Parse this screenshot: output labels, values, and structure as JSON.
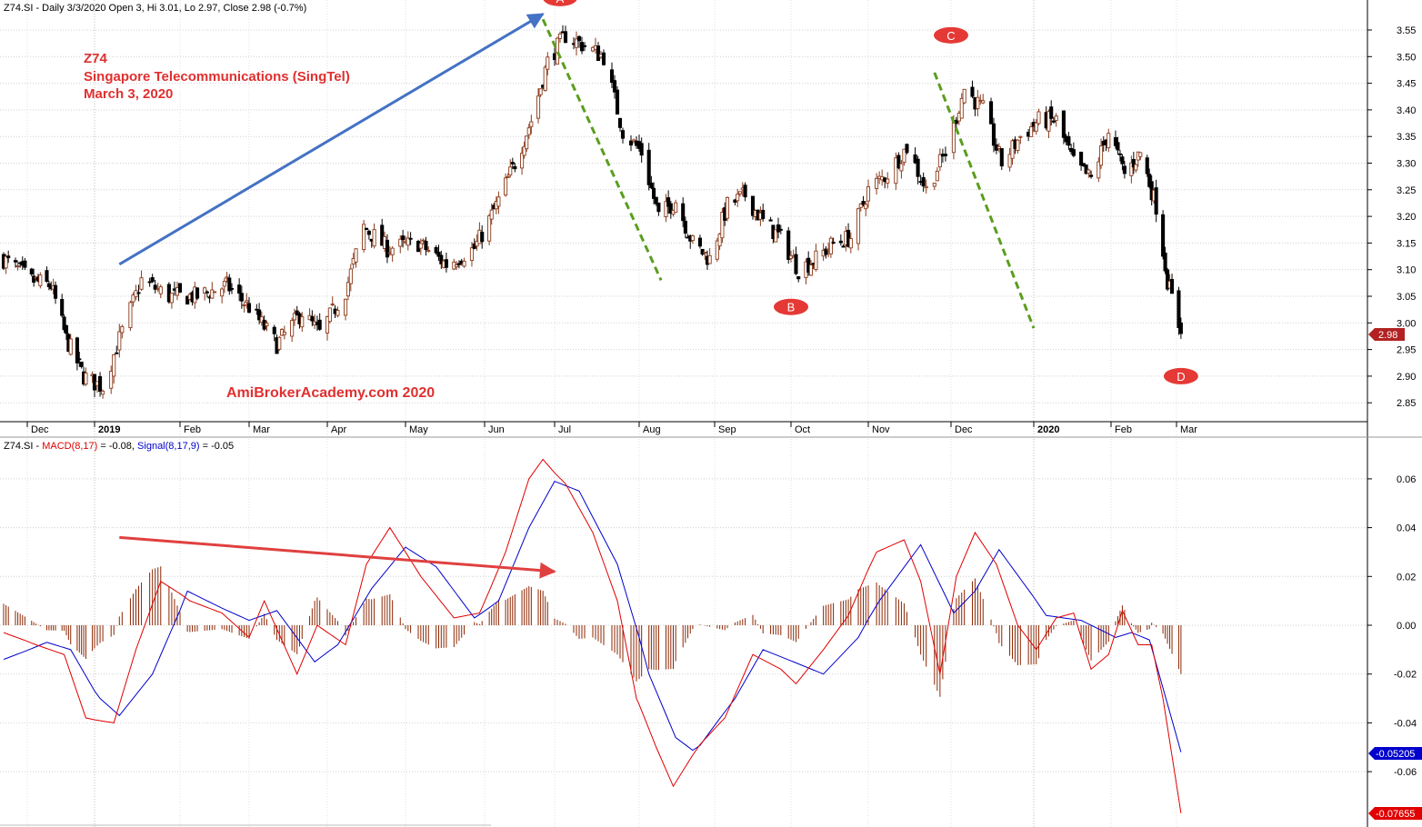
{
  "price_panel": {
    "header": "Z74.SI - Daily 3/3/2020 Open 3, Hi 3.01, Lo 2.97, Close 2.98 (-0.7%)",
    "annotation": {
      "line1": "Z74",
      "line2": "Singapore Telecommunications  (SingTel)",
      "line3": "March 3, 2020"
    },
    "watermark": "AmiBrokerAcademy.com   2020",
    "last_close_badge": "2.98"
  },
  "macd_panel": {
    "header_prefix": "Z74.SI - ",
    "header_macd": "MACD(8,17)",
    "header_macd_value": " = -0.08, ",
    "header_signal": "Signal(8,17,9)",
    "header_signal_value": " = -0.05",
    "signal_badge": "-0.05205",
    "macd_badge": "-0.07655"
  },
  "colors": {
    "up_candle_outline": "#8b3a1a",
    "down_candle": "#000000",
    "macd_line": "#e00000",
    "signal_line": "#0000cc",
    "histogram": "#8b2500",
    "trend_up_arrow": "#4472c4",
    "divergence_arrow": "#e04040",
    "dashed_trend": "#5a9e1e",
    "label_fill": "#e53935"
  },
  "chart_data": [
    {
      "type": "candlestick",
      "title": "Z74.SI - Daily 3/3/2020 Open 3, Hi 3.01, Lo 2.97, Close 2.98 (-0.7%)",
      "ylim": [
        2.8,
        3.6
      ],
      "y_ticks": [
        "3.55",
        "3.50",
        "3.45",
        "3.40",
        "3.35",
        "3.30",
        "3.25",
        "3.20",
        "3.15",
        "3.10",
        "3.05",
        "3.00",
        "2.95",
        "2.90",
        "2.85"
      ],
      "x_ticks": [
        {
          "label": "Dec",
          "date": "2018-12-01"
        },
        {
          "label": "2019",
          "date": "2019-01-01",
          "bold": true
        },
        {
          "label": "Feb",
          "date": "2019-02-01"
        },
        {
          "label": "Mar",
          "date": "2019-03-01"
        },
        {
          "label": "Apr",
          "date": "2019-04-01"
        },
        {
          "label": "May",
          "date": "2019-05-01"
        },
        {
          "label": "Jun",
          "date": "2019-06-01"
        },
        {
          "label": "Jul",
          "date": "2019-07-01"
        },
        {
          "label": "Aug",
          "date": "2019-08-01"
        },
        {
          "label": "Sep",
          "date": "2019-09-01"
        },
        {
          "label": "Oct",
          "date": "2019-10-01"
        },
        {
          "label": "Nov",
          "date": "2019-11-01"
        },
        {
          "label": "Dec",
          "date": "2019-12-01"
        },
        {
          "label": "2020",
          "date": "2020-01-01",
          "bold": true
        },
        {
          "label": "Feb",
          "date": "2020-02-01"
        },
        {
          "label": "Mar",
          "date": "2020-03-01"
        }
      ],
      "close_path": [
        {
          "date": "2018-11-21",
          "close": 3.12
        },
        {
          "date": "2018-12-03",
          "close": 3.08
        },
        {
          "date": "2018-12-12",
          "close": 3.07
        },
        {
          "date": "2018-12-19",
          "close": 2.97
        },
        {
          "date": "2018-12-27",
          "close": 2.9
        },
        {
          "date": "2019-01-04",
          "close": 2.88
        },
        {
          "date": "2019-01-10",
          "close": 2.97
        },
        {
          "date": "2019-01-18",
          "close": 3.08
        },
        {
          "date": "2019-01-28",
          "close": 3.05
        },
        {
          "date": "2019-02-08",
          "close": 3.05
        },
        {
          "date": "2019-02-20",
          "close": 3.07
        },
        {
          "date": "2019-03-01",
          "close": 3.03
        },
        {
          "date": "2019-03-12",
          "close": 2.96
        },
        {
          "date": "2019-03-22",
          "close": 3.02
        },
        {
          "date": "2019-03-29",
          "close": 2.98
        },
        {
          "date": "2019-04-08",
          "close": 3.06
        },
        {
          "date": "2019-04-15",
          "close": 3.18
        },
        {
          "date": "2019-04-24",
          "close": 3.14
        },
        {
          "date": "2019-05-06",
          "close": 3.15
        },
        {
          "date": "2019-05-17",
          "close": 3.11
        },
        {
          "date": "2019-05-28",
          "close": 3.14
        },
        {
          "date": "2019-06-06",
          "close": 3.22
        },
        {
          "date": "2019-06-14",
          "close": 3.3
        },
        {
          "date": "2019-06-21",
          "close": 3.38
        },
        {
          "date": "2019-06-28",
          "close": 3.49
        },
        {
          "date": "2019-07-05",
          "close": 3.54
        },
        {
          "date": "2019-07-12",
          "close": 3.52
        },
        {
          "date": "2019-07-19",
          "close": 3.5
        },
        {
          "date": "2019-07-26",
          "close": 3.36
        },
        {
          "date": "2019-08-02",
          "close": 3.32
        },
        {
          "date": "2019-08-09",
          "close": 3.2
        },
        {
          "date": "2019-08-16",
          "close": 3.23
        },
        {
          "date": "2019-08-23",
          "close": 3.15
        },
        {
          "date": "2019-08-30",
          "close": 3.12
        },
        {
          "date": "2019-09-06",
          "close": 3.22
        },
        {
          "date": "2019-09-13",
          "close": 3.24
        },
        {
          "date": "2019-09-20",
          "close": 3.19
        },
        {
          "date": "2019-09-27",
          "close": 3.16
        },
        {
          "date": "2019-10-04",
          "close": 3.1
        },
        {
          "date": "2019-10-11",
          "close": 3.12
        },
        {
          "date": "2019-10-18",
          "close": 3.15
        },
        {
          "date": "2019-10-25",
          "close": 3.16
        },
        {
          "date": "2019-11-01",
          "close": 3.25
        },
        {
          "date": "2019-11-08",
          "close": 3.28
        },
        {
          "date": "2019-11-15",
          "close": 3.33
        },
        {
          "date": "2019-11-22",
          "close": 3.25
        },
        {
          "date": "2019-11-29",
          "close": 3.32
        },
        {
          "date": "2019-12-06",
          "close": 3.44
        },
        {
          "date": "2019-12-13",
          "close": 3.4
        },
        {
          "date": "2019-12-20",
          "close": 3.3
        },
        {
          "date": "2019-12-27",
          "close": 3.35
        },
        {
          "date": "2020-01-03",
          "close": 3.38
        },
        {
          "date": "2020-01-10",
          "close": 3.38
        },
        {
          "date": "2020-01-17",
          "close": 3.3
        },
        {
          "date": "2020-01-24",
          "close": 3.27
        },
        {
          "date": "2020-01-31",
          "close": 3.36
        },
        {
          "date": "2020-02-07",
          "close": 3.28
        },
        {
          "date": "2020-02-14",
          "close": 3.32
        },
        {
          "date": "2020-02-21",
          "close": 3.22
        },
        {
          "date": "2020-02-26",
          "close": 3.08
        },
        {
          "date": "2020-03-03",
          "close": 2.98
        }
      ],
      "last_bar": {
        "date": "2020-03-03",
        "open": 3.0,
        "high": 3.01,
        "low": 2.97,
        "close": 2.98
      },
      "wave_labels": [
        {
          "text": "A",
          "date": "2019-07-01",
          "value": 3.61
        },
        {
          "text": "B",
          "date": "2019-10-01",
          "value": 3.03
        },
        {
          "text": "C",
          "date": "2019-12-01",
          "value": 3.54
        },
        {
          "text": "D",
          "date": "2020-03-03",
          "value": 2.9
        }
      ],
      "trendlines": [
        {
          "kind": "arrow",
          "from": {
            "date": "2019-01-10",
            "value": 3.11
          },
          "to": {
            "date": "2019-06-26",
            "value": 3.58
          }
        },
        {
          "kind": "dashed",
          "from": {
            "date": "2019-06-26",
            "value": 3.57
          },
          "to": {
            "date": "2019-08-10",
            "value": 3.08
          }
        },
        {
          "kind": "dashed",
          "from": {
            "date": "2019-11-25",
            "value": 3.47
          },
          "to": {
            "date": "2020-01-01",
            "value": 2.99
          }
        }
      ],
      "annotations": [
        "Z74",
        "Singapore Telecommunications  (SingTel)",
        "March 3, 2020",
        "AmiBrokerAcademy.com   2020"
      ]
    },
    {
      "type": "line",
      "title": "Z74.SI - MACD(8,17) = -0.08, Signal(8,17,9) = -0.05",
      "ylim": [
        -0.08,
        0.07
      ],
      "y_ticks": [
        "0.06",
        "0.04",
        "0.02",
        "0.00",
        "-0.02",
        "-0.04",
        "-0.06"
      ],
      "series": [
        {
          "name": "MACD(8,17)",
          "points": [
            {
              "date": "2018-11-21",
              "value": -0.003
            },
            {
              "date": "2018-12-05",
              "value": -0.008
            },
            {
              "date": "2018-12-18",
              "value": -0.012
            },
            {
              "date": "2018-12-28",
              "value": -0.038
            },
            {
              "date": "2019-01-08",
              "value": -0.04
            },
            {
              "date": "2019-01-16",
              "value": -0.01
            },
            {
              "date": "2019-01-25",
              "value": 0.018
            },
            {
              "date": "2019-02-05",
              "value": 0.01
            },
            {
              "date": "2019-02-18",
              "value": 0.005
            },
            {
              "date": "2019-03-01",
              "value": -0.005
            },
            {
              "date": "2019-03-07",
              "value": 0.01
            },
            {
              "date": "2019-03-20",
              "value": -0.02
            },
            {
              "date": "2019-03-28",
              "value": 0.0
            },
            {
              "date": "2019-04-08",
              "value": -0.008
            },
            {
              "date": "2019-04-16",
              "value": 0.025
            },
            {
              "date": "2019-04-25",
              "value": 0.04
            },
            {
              "date": "2019-05-07",
              "value": 0.02
            },
            {
              "date": "2019-05-20",
              "value": 0.003
            },
            {
              "date": "2019-05-30",
              "value": 0.005
            },
            {
              "date": "2019-06-10",
              "value": 0.03
            },
            {
              "date": "2019-06-20",
              "value": 0.06
            },
            {
              "date": "2019-06-26",
              "value": 0.068
            },
            {
              "date": "2019-07-05",
              "value": 0.058
            },
            {
              "date": "2019-07-15",
              "value": 0.038
            },
            {
              "date": "2019-07-24",
              "value": 0.01
            },
            {
              "date": "2019-07-31",
              "value": -0.03
            },
            {
              "date": "2019-08-08",
              "value": -0.05
            },
            {
              "date": "2019-08-15",
              "value": -0.066
            },
            {
              "date": "2019-08-25",
              "value": -0.05
            },
            {
              "date": "2019-09-05",
              "value": -0.038
            },
            {
              "date": "2019-09-16",
              "value": -0.012
            },
            {
              "date": "2019-09-27",
              "value": -0.018
            },
            {
              "date": "2019-10-03",
              "value": -0.024
            },
            {
              "date": "2019-10-14",
              "value": -0.01
            },
            {
              "date": "2019-10-24",
              "value": 0.004
            },
            {
              "date": "2019-11-04",
              "value": 0.03
            },
            {
              "date": "2019-11-14",
              "value": 0.035
            },
            {
              "date": "2019-11-20",
              "value": 0.018
            },
            {
              "date": "2019-11-27",
              "value": -0.02
            },
            {
              "date": "2019-12-03",
              "value": 0.02
            },
            {
              "date": "2019-12-10",
              "value": 0.038
            },
            {
              "date": "2019-12-18",
              "value": 0.025
            },
            {
              "date": "2019-12-26",
              "value": 0.0
            },
            {
              "date": "2020-01-02",
              "value": -0.01
            },
            {
              "date": "2020-01-10",
              "value": 0.003
            },
            {
              "date": "2020-01-17",
              "value": 0.005
            },
            {
              "date": "2020-01-24",
              "value": -0.018
            },
            {
              "date": "2020-01-31",
              "value": -0.012
            },
            {
              "date": "2020-02-06",
              "value": 0.006
            },
            {
              "date": "2020-02-13",
              "value": -0.008
            },
            {
              "date": "2020-02-19",
              "value": -0.008
            },
            {
              "date": "2020-02-24",
              "value": -0.03
            },
            {
              "date": "2020-03-03",
              "value": -0.077
            }
          ]
        },
        {
          "name": "Signal(8,17,9)",
          "points": [
            {
              "date": "2018-11-21",
              "value": -0.014
            },
            {
              "date": "2018-12-10",
              "value": -0.007
            },
            {
              "date": "2018-12-21",
              "value": -0.01
            },
            {
              "date": "2019-01-03",
              "value": -0.03
            },
            {
              "date": "2019-01-10",
              "value": -0.037
            },
            {
              "date": "2019-01-22",
              "value": -0.02
            },
            {
              "date": "2019-02-04",
              "value": 0.014
            },
            {
              "date": "2019-02-18",
              "value": 0.007
            },
            {
              "date": "2019-03-01",
              "value": 0.002
            },
            {
              "date": "2019-03-12",
              "value": 0.006
            },
            {
              "date": "2019-03-27",
              "value": -0.015
            },
            {
              "date": "2019-04-05",
              "value": -0.008
            },
            {
              "date": "2019-04-18",
              "value": 0.015
            },
            {
              "date": "2019-05-01",
              "value": 0.032
            },
            {
              "date": "2019-05-13",
              "value": 0.024
            },
            {
              "date": "2019-05-28",
              "value": 0.003
            },
            {
              "date": "2019-06-07",
              "value": 0.01
            },
            {
              "date": "2019-06-20",
              "value": 0.04
            },
            {
              "date": "2019-07-01",
              "value": 0.059
            },
            {
              "date": "2019-07-10",
              "value": 0.055
            },
            {
              "date": "2019-07-24",
              "value": 0.025
            },
            {
              "date": "2019-08-05",
              "value": -0.02
            },
            {
              "date": "2019-08-16",
              "value": -0.046
            },
            {
              "date": "2019-08-24",
              "value": -0.052
            },
            {
              "date": "2019-09-09",
              "value": -0.03
            },
            {
              "date": "2019-09-20",
              "value": -0.01
            },
            {
              "date": "2019-10-02",
              "value": -0.015
            },
            {
              "date": "2019-10-14",
              "value": -0.02
            },
            {
              "date": "2019-10-28",
              "value": -0.005
            },
            {
              "date": "2019-11-05",
              "value": 0.01
            },
            {
              "date": "2019-11-20",
              "value": 0.033
            },
            {
              "date": "2019-12-02",
              "value": 0.005
            },
            {
              "date": "2019-12-10",
              "value": 0.014
            },
            {
              "date": "2019-12-19",
              "value": 0.031
            },
            {
              "date": "2020-01-06",
              "value": 0.004
            },
            {
              "date": "2020-01-20",
              "value": 0.002
            },
            {
              "date": "2020-02-03",
              "value": -0.005
            },
            {
              "date": "2020-02-10",
              "value": -0.003
            },
            {
              "date": "2020-02-18",
              "value": -0.006
            },
            {
              "date": "2020-03-03",
              "value": -0.052
            }
          ]
        }
      ],
      "histogram_reference": "MACD minus Signal",
      "trendlines": [
        {
          "kind": "arrow",
          "from": {
            "date": "2019-01-10",
            "value": 0.036
          },
          "to": {
            "date": "2019-07-01",
            "value": 0.022
          }
        }
      ]
    }
  ]
}
